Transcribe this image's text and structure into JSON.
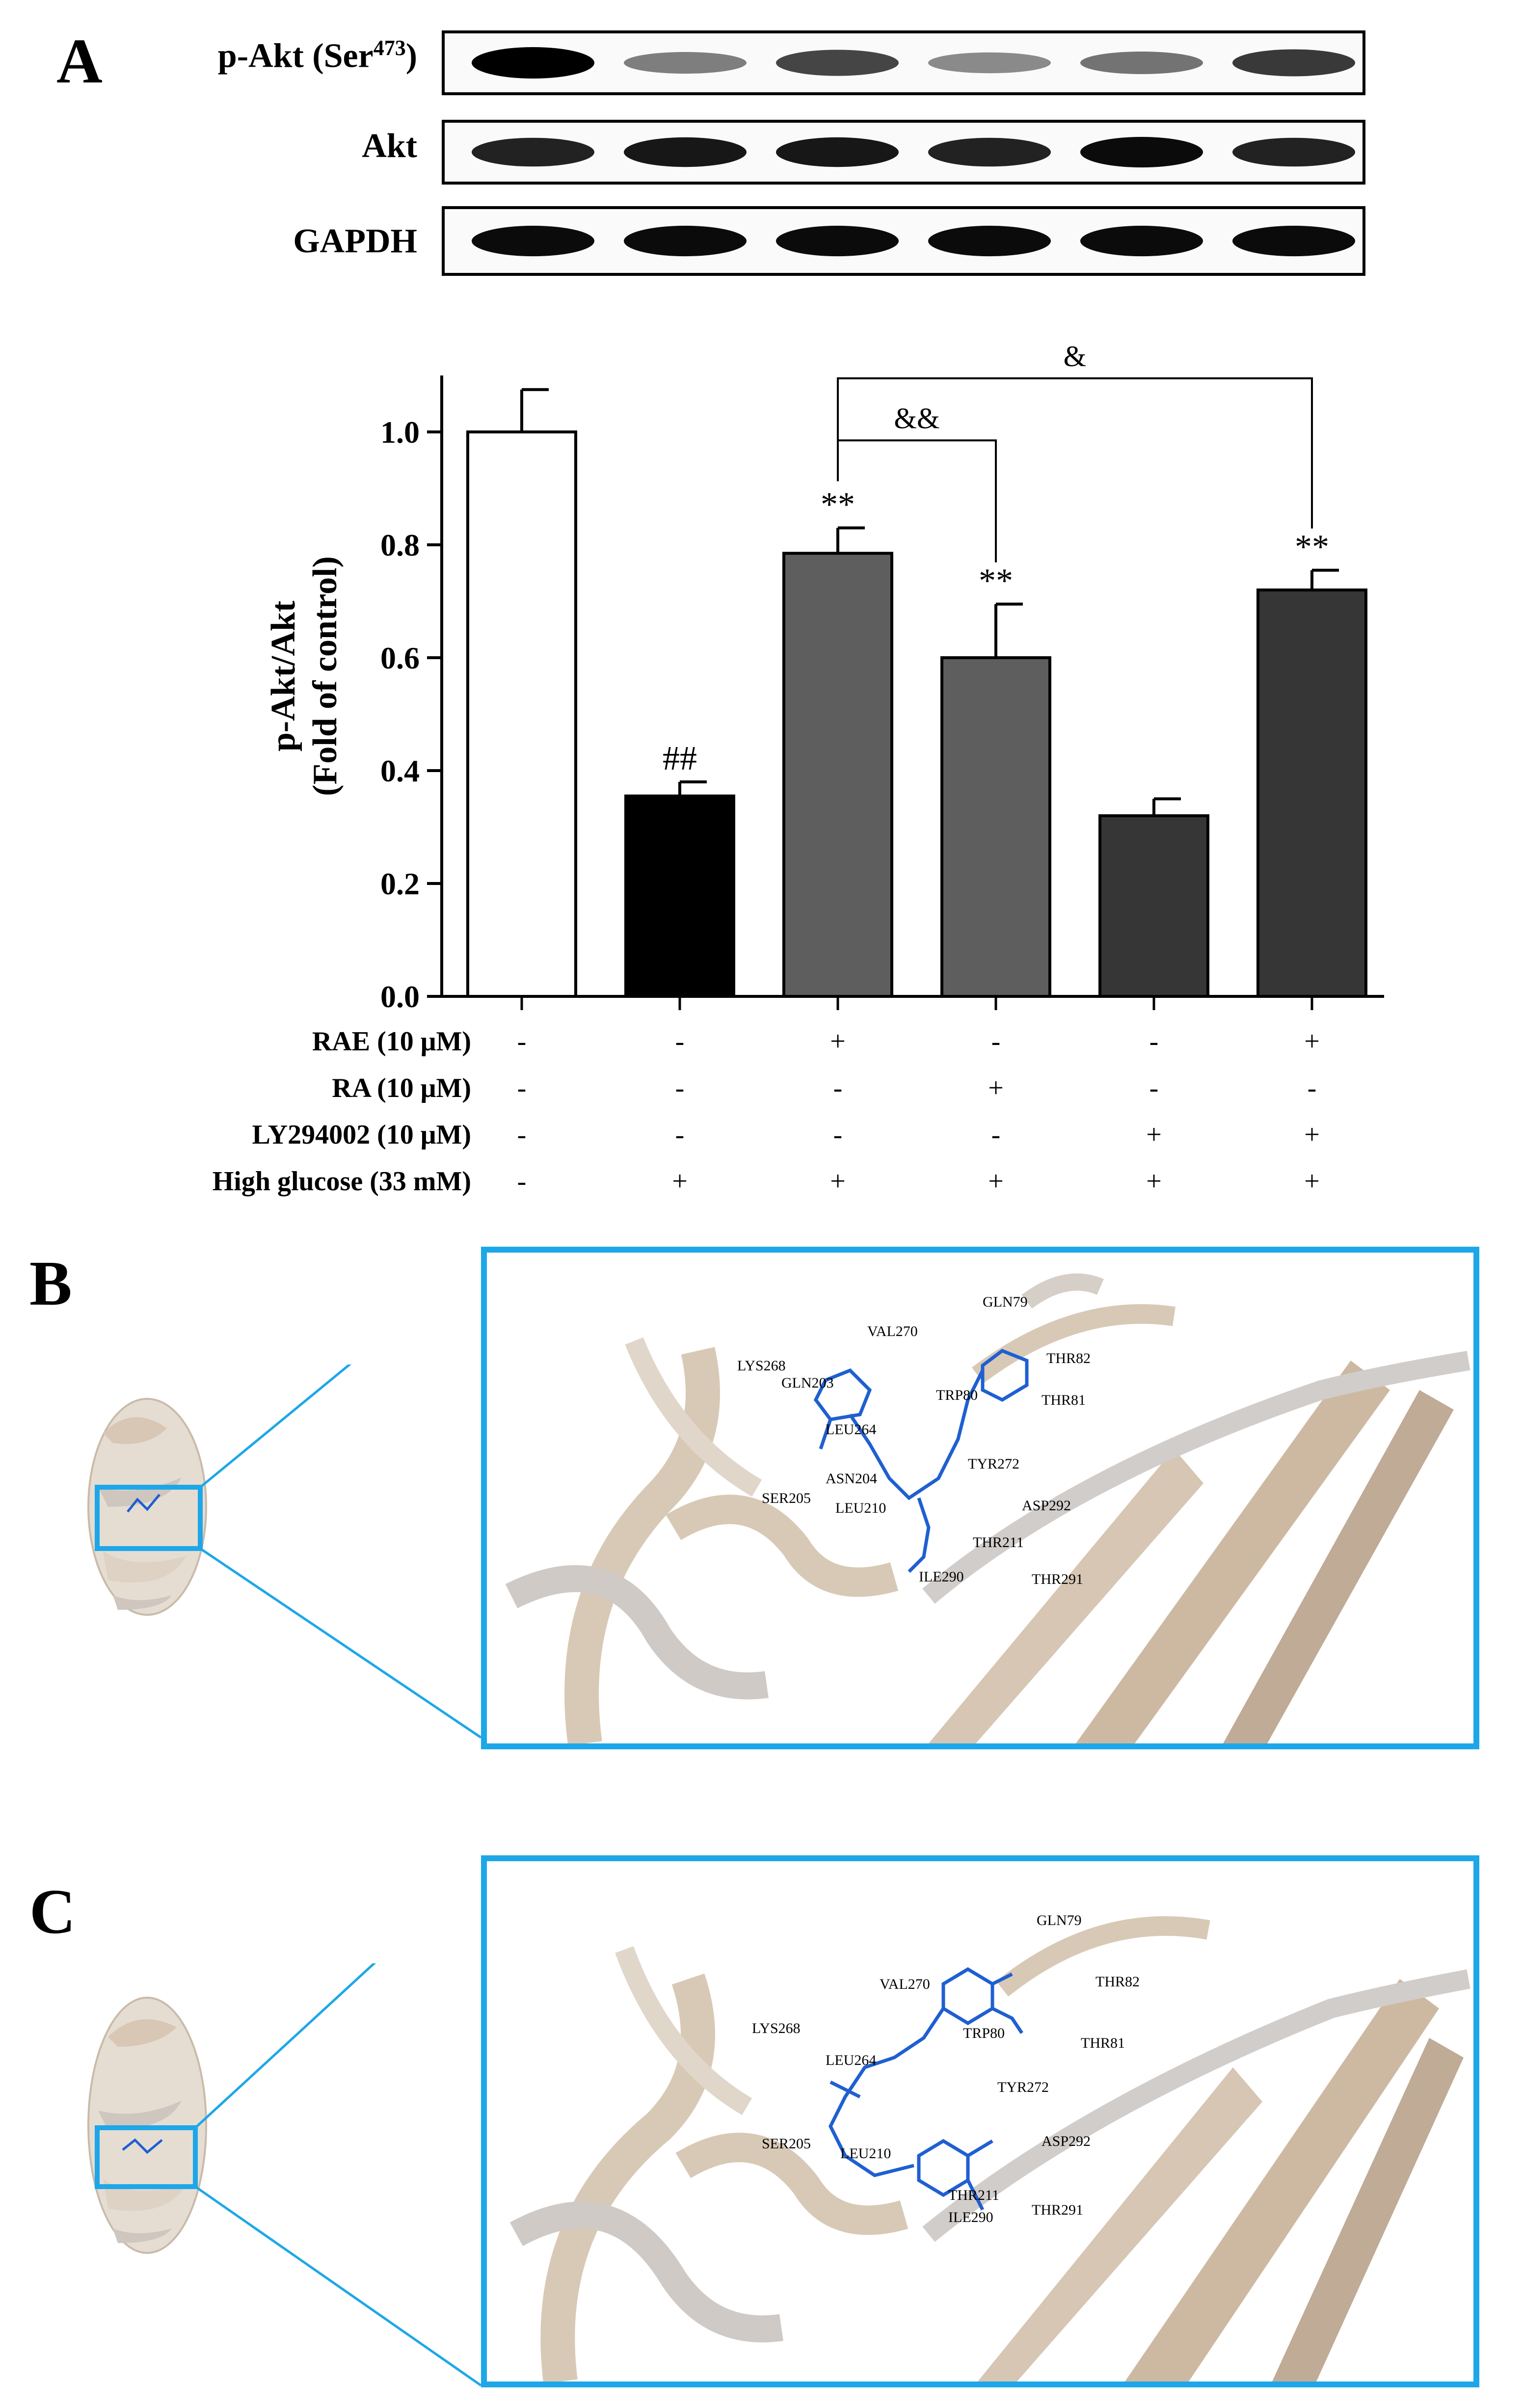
{
  "panels": {
    "a_letter": "A",
    "b_letter": "B",
    "c_letter": "C"
  },
  "blots": {
    "rows": [
      {
        "label": "p-Akt (Ser",
        "sup": "473",
        "suffix": ")",
        "intensities": [
          1.0,
          0.45,
          0.7,
          0.4,
          0.5,
          0.75
        ]
      },
      {
        "label": "Akt",
        "sup": "",
        "suffix": "",
        "intensities": [
          0.85,
          0.9,
          0.9,
          0.85,
          0.95,
          0.85
        ]
      },
      {
        "label": "GAPDH",
        "sup": "",
        "suffix": "",
        "intensities": [
          0.95,
          0.95,
          0.95,
          0.95,
          0.95,
          0.95
        ]
      }
    ]
  },
  "chart_data": {
    "type": "bar",
    "ylabel_line1": "p-Akt/Akt",
    "ylabel_line2": "(Fold of control)",
    "ylim": [
      0,
      1.1
    ],
    "yticks": [
      "0.0",
      "0.2",
      "0.4",
      "0.6",
      "0.8",
      "1.0"
    ],
    "values": [
      1.0,
      0.355,
      0.785,
      0.6,
      0.32,
      0.72
    ],
    "errors": [
      0.075,
      0.025,
      0.045,
      0.095,
      0.03,
      0.035
    ],
    "bar_colors": [
      "#ffffff",
      "#000000",
      "#5e5e5e",
      "#5e5e5e",
      "#363636",
      "#363636"
    ],
    "annotations": [
      "",
      "##",
      "**",
      "**",
      "",
      "**"
    ],
    "brackets": [
      {
        "from": 2,
        "to": 3,
        "label": "&&"
      },
      {
        "from": 2,
        "to": 5,
        "label": "&"
      }
    ],
    "conditions": [
      {
        "label": "RAE (10 μM)",
        "marks": [
          "-",
          "-",
          "+",
          "-",
          "-",
          "+"
        ]
      },
      {
        "label": "RA (10 μM)",
        "marks": [
          "-",
          "-",
          "-",
          "+",
          "-",
          "-"
        ]
      },
      {
        "label": "LY294002 (10 μM)",
        "marks": [
          "-",
          "-",
          "-",
          "-",
          "+",
          "+"
        ]
      },
      {
        "label": "High glucose (33 mM)",
        "marks": [
          "-",
          "+",
          "+",
          "+",
          "+",
          "+"
        ]
      }
    ]
  },
  "docking_b": {
    "residues": [
      {
        "name": "GLN79"
      },
      {
        "name": "VAL270"
      },
      {
        "name": "THR82"
      },
      {
        "name": "LYS268"
      },
      {
        "name": "GLN203"
      },
      {
        "name": "TRP80"
      },
      {
        "name": "THR81"
      },
      {
        "name": "LEU264"
      },
      {
        "name": "TYR272"
      },
      {
        "name": "ASN204"
      },
      {
        "name": "SER205"
      },
      {
        "name": "LEU210"
      },
      {
        "name": "ASP292"
      },
      {
        "name": "THR211"
      },
      {
        "name": "ILE290"
      },
      {
        "name": "THR291"
      }
    ]
  },
  "docking_c": {
    "residues": [
      {
        "name": "GLN79"
      },
      {
        "name": "VAL270"
      },
      {
        "name": "THR82"
      },
      {
        "name": "TRP80"
      },
      {
        "name": "LYS268"
      },
      {
        "name": "THR81"
      },
      {
        "name": "LEU264"
      },
      {
        "name": "TYR272"
      },
      {
        "name": "SER205"
      },
      {
        "name": "LEU210"
      },
      {
        "name": "ASP292"
      },
      {
        "name": "THR211"
      },
      {
        "name": "THR291"
      },
      {
        "name": "ILE290"
      }
    ]
  },
  "colors": {
    "accent": "#1ea7e8",
    "ligand": "#1f5fd1",
    "ribbon": "#d8c9b6",
    "ribbon_shadow": "#bcb6b3"
  }
}
